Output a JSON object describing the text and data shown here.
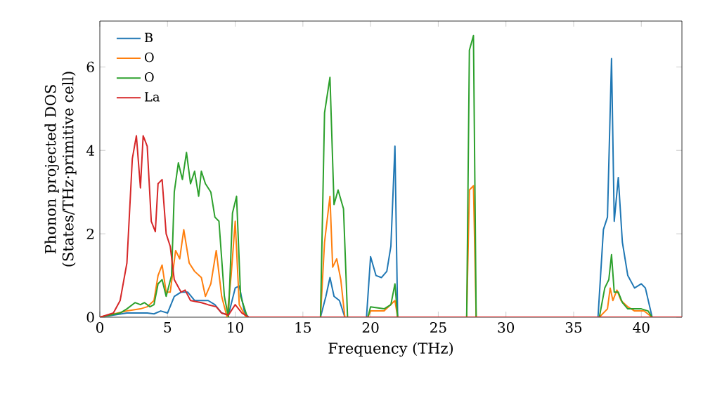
{
  "chart_data": {
    "type": "line",
    "xlabel": "Frequency (THz)",
    "ylabel": "Phonon projected DOS (States/THz·primitive cell)",
    "xlim": [
      0,
      43
    ],
    "ylim": [
      0,
      7.1
    ],
    "xticks": [
      0,
      5,
      10,
      15,
      20,
      25,
      30,
      35,
      40
    ],
    "yticks": [
      0,
      2,
      4,
      6
    ],
    "legend": "top left",
    "series": [
      {
        "name": "B",
        "color": "#1f77b4",
        "x": [
          0,
          2,
          3,
          3.5,
          4,
          4.5,
          5,
          5.5,
          6,
          6.5,
          7,
          8,
          8.5,
          9,
          9.5,
          10,
          10.3,
          10.7,
          11,
          16.3,
          16.7,
          17,
          17.3,
          17.7,
          18.1,
          19.7,
          20,
          20.4,
          20.8,
          21.2,
          21.5,
          21.8,
          22,
          36.8,
          37.2,
          37.5,
          37.8,
          38,
          38.3,
          38.6,
          39,
          39.5,
          40,
          40.3,
          40.8,
          43
        ],
        "values": [
          0,
          0.1,
          0.1,
          0.1,
          0.08,
          0.15,
          0.1,
          0.5,
          0.6,
          0.6,
          0.4,
          0.4,
          0.3,
          0.1,
          0.05,
          0.7,
          0.75,
          0.1,
          0,
          0,
          0.5,
          0.95,
          0.5,
          0.4,
          0,
          0,
          1.45,
          1.0,
          0.95,
          1.1,
          1.7,
          4.1,
          0,
          0,
          2.1,
          2.4,
          6.2,
          2.3,
          3.35,
          1.8,
          1.0,
          0.7,
          0.8,
          0.7,
          0,
          0
        ]
      },
      {
        "name": "O",
        "color": "#ff7f0e",
        "x": [
          0,
          2,
          3,
          3.5,
          4,
          4.3,
          4.6,
          4.9,
          5.2,
          5.6,
          5.9,
          6.2,
          6.6,
          7,
          7.5,
          7.8,
          8.2,
          8.6,
          9,
          9.4,
          9.7,
          10,
          10.3,
          10.8,
          16.3,
          16.6,
          17,
          17.2,
          17.5,
          17.8,
          18.1,
          19.8,
          20,
          21,
          21.8,
          22,
          27.1,
          27.3,
          27.6,
          27.8,
          36.9,
          37.5,
          37.7,
          37.9,
          38.2,
          38.5,
          39,
          39.5,
          40.2,
          40.8,
          43
        ],
        "values": [
          0,
          0.15,
          0.2,
          0.25,
          0.4,
          1.0,
          1.25,
          0.6,
          0.6,
          1.6,
          1.4,
          2.1,
          1.3,
          1.1,
          0.95,
          0.5,
          0.8,
          1.6,
          0.5,
          0,
          1.0,
          2.3,
          0.3,
          0,
          0,
          1.8,
          2.9,
          1.2,
          1.4,
          0.9,
          0,
          0,
          0.15,
          0.15,
          0.4,
          0,
          0,
          3.05,
          3.15,
          0,
          0,
          0.2,
          0.7,
          0.4,
          0.65,
          0.4,
          0.25,
          0.15,
          0.15,
          0,
          0
        ]
      },
      {
        "name": "O",
        "color": "#2ca02c",
        "x": [
          0,
          1.5,
          2,
          2.6,
          3,
          3.3,
          3.7,
          4,
          4.3,
          4.6,
          4.9,
          5.3,
          5.5,
          5.8,
          6.1,
          6.4,
          6.7,
          7,
          7.3,
          7.5,
          7.8,
          8.2,
          8.5,
          8.8,
          9.2,
          9.5,
          9.8,
          10.1,
          10.4,
          10.9,
          16.3,
          16.6,
          17,
          17.3,
          17.6,
          18,
          18.3,
          19.8,
          20,
          21,
          21.5,
          21.8,
          22,
          27.1,
          27.3,
          27.6,
          27.8,
          36.9,
          37.3,
          37.6,
          37.8,
          38,
          38.3,
          38.6,
          39,
          40,
          40.5,
          40.8,
          43
        ],
        "values": [
          0,
          0.1,
          0.2,
          0.35,
          0.3,
          0.35,
          0.25,
          0.3,
          0.8,
          0.9,
          0.5,
          1.0,
          3.0,
          3.7,
          3.3,
          3.95,
          3.2,
          3.5,
          2.9,
          3.5,
          3.2,
          3.0,
          2.4,
          2.3,
          0.5,
          0,
          2.5,
          2.9,
          0.5,
          0,
          0,
          4.9,
          5.75,
          2.7,
          3.05,
          2.6,
          0,
          0,
          0.25,
          0.2,
          0.3,
          0.8,
          0,
          0,
          6.4,
          6.75,
          0,
          0,
          0.7,
          0.9,
          1.5,
          0.6,
          0.6,
          0.35,
          0.2,
          0.2,
          0.15,
          0,
          0
        ]
      },
      {
        "name": "La",
        "color": "#d62728",
        "x": [
          0,
          1,
          1.5,
          2,
          2.4,
          2.7,
          3,
          3.2,
          3.5,
          3.8,
          4.1,
          4.3,
          4.6,
          4.9,
          5.2,
          5.5,
          6,
          6.3,
          6.7,
          7.5,
          8,
          8.6,
          9,
          9.5,
          10,
          10.5,
          11,
          43
        ],
        "values": [
          0,
          0.1,
          0.4,
          1.3,
          3.8,
          4.35,
          3.1,
          4.35,
          4.1,
          2.3,
          2.05,
          3.2,
          3.3,
          2.0,
          1.7,
          0.9,
          0.6,
          0.65,
          0.4,
          0.35,
          0.3,
          0.25,
          0.1,
          0.05,
          0.3,
          0.1,
          0,
          0
        ]
      }
    ]
  }
}
